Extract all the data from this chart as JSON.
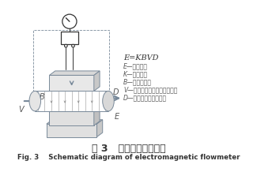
{
  "title_cn": "图 3   电磁流量计原理图",
  "title_en": "Fig. 3    Schematic diagram of electromagnetic flowmeter",
  "formula": "E=KBVD",
  "labels": [
    "E—感应电势",
    "K—仪表常数",
    "B—磁感应强度",
    "V—测量管道截面内的平均流速",
    "D—测量管道截面的内径"
  ],
  "bg_color": "#ffffff",
  "line_color": "#7a8a9a",
  "dark_color": "#333333",
  "gray_color": "#999999",
  "arrow_color": "#778899",
  "pipe_fill": "#e8e8e8",
  "magnet_fill": "#d8d8d8"
}
